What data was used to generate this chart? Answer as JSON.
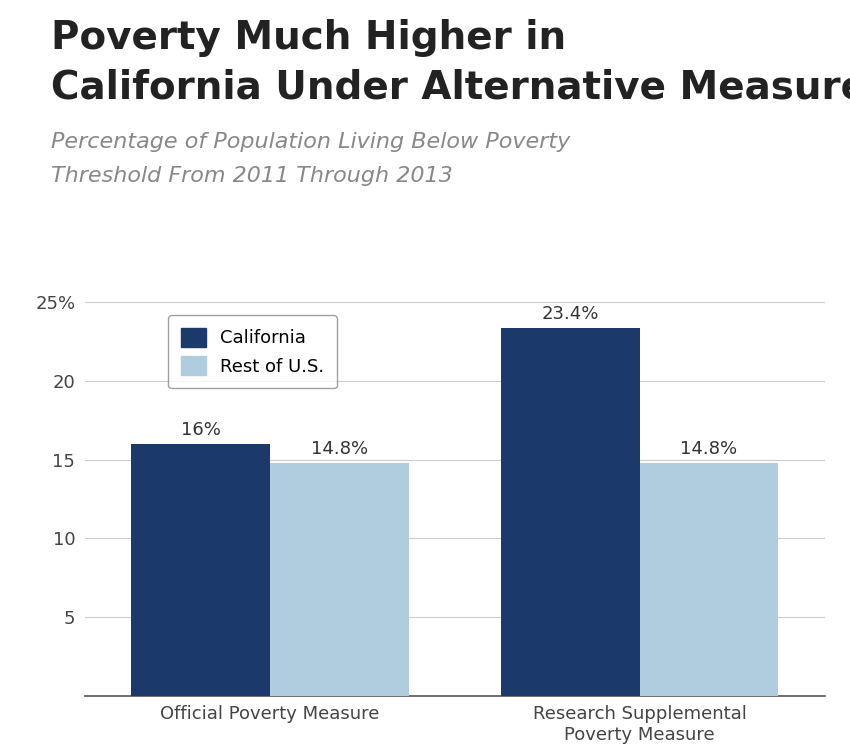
{
  "title_line1": "Poverty Much Higher in",
  "title_line2": "California Under Alternative Measure",
  "subtitle_line1": "Percentage of Population Living Below Poverty",
  "subtitle_line2": "Threshold From 2011 Through 2013",
  "categories": [
    "Official Poverty Measure",
    "Research Supplemental\nPoverty Measure"
  ],
  "california_values": [
    16.0,
    23.4
  ],
  "rest_us_values": [
    14.8,
    14.8
  ],
  "california_labels": [
    "16%",
    "23.4%"
  ],
  "rest_us_labels": [
    "14.8%",
    "14.8%"
  ],
  "california_color": "#1b3a6b",
  "rest_us_color": "#b0cde0",
  "ylim": [
    0,
    25
  ],
  "yticks": [
    0,
    5,
    10,
    15,
    20,
    25
  ],
  "bar_width": 0.3,
  "legend_labels": [
    "California",
    "Rest of U.S."
  ],
  "background_color": "#ffffff",
  "title_fontsize": 28,
  "subtitle_fontsize": 16,
  "label_fontsize": 13,
  "tick_fontsize": 13,
  "legend_fontsize": 13
}
